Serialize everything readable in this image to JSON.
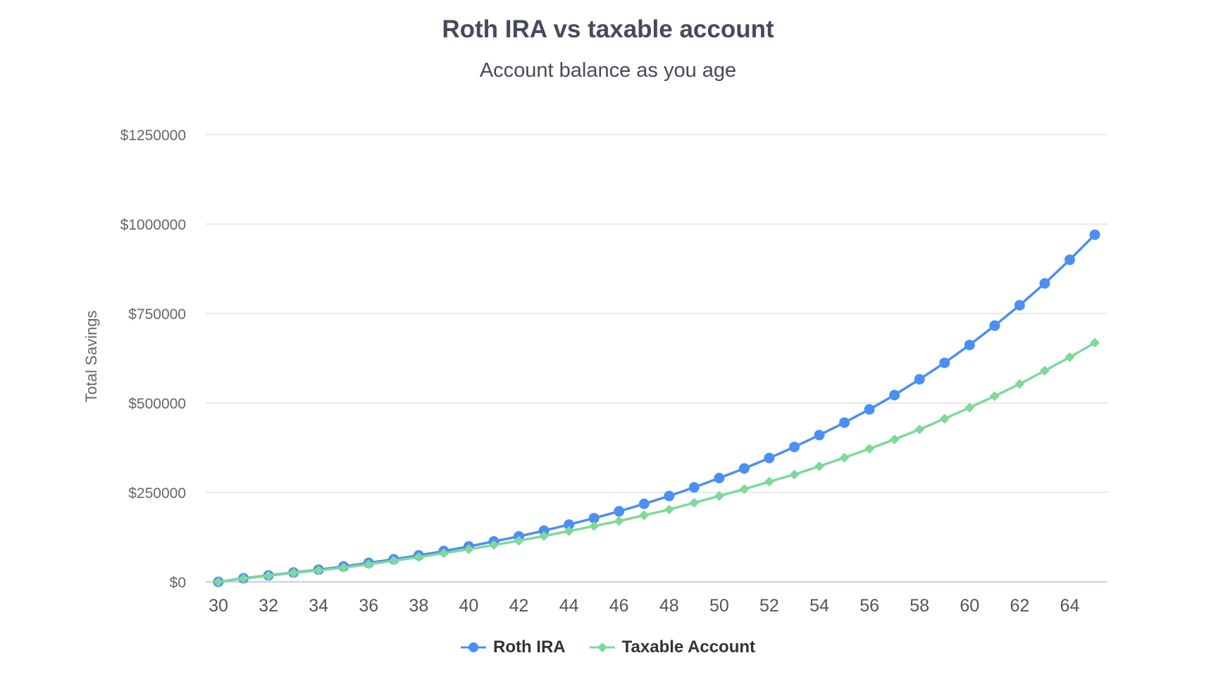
{
  "chart_data": {
    "type": "line",
    "title": "Roth IRA vs taxable account",
    "subtitle": "Account balance as you age",
    "xlabel": "",
    "ylabel": "Total Savings",
    "ylim": [
      0,
      1250000
    ],
    "yticks": [
      0,
      250000,
      500000,
      750000,
      1000000,
      1250000
    ],
    "ytick_labels": [
      "$0",
      "$250000",
      "$500000",
      "$750000",
      "$1000000",
      "$1250000"
    ],
    "xlim": [
      30,
      65
    ],
    "xticks": [
      30,
      32,
      34,
      36,
      38,
      40,
      42,
      44,
      46,
      48,
      50,
      52,
      54,
      56,
      58,
      60,
      62,
      64
    ],
    "xtick_labels": [
      "30",
      "32",
      "34",
      "36",
      "38",
      "40",
      "42",
      "44",
      "46",
      "48",
      "50",
      "52",
      "54",
      "56",
      "58",
      "60",
      "62",
      "64"
    ],
    "grid": true,
    "legend": "bottom-center",
    "x": [
      30,
      31,
      32,
      33,
      34,
      35,
      36,
      37,
      38,
      39,
      40,
      41,
      42,
      43,
      44,
      45,
      46,
      47,
      48,
      49,
      50,
      51,
      52,
      53,
      54,
      55,
      56,
      57,
      58,
      59,
      60,
      61,
      62,
      63,
      64,
      65
    ],
    "series": [
      {
        "name": "Roth IRA",
        "color": "#4a90f2",
        "marker": "circle",
        "values": [
          0,
          10000,
          18000,
          26000,
          34000,
          43000,
          53000,
          63000,
          74000,
          86000,
          99000,
          113000,
          127000,
          143000,
          160000,
          178000,
          197000,
          218000,
          240000,
          264000,
          290000,
          317000,
          346000,
          377000,
          410000,
          445000,
          482000,
          522000,
          566000,
          612000,
          662000,
          716000,
          773000,
          834000,
          900000,
          970000
        ]
      },
      {
        "name": "Taxable Account",
        "color": "#7fd99a",
        "marker": "diamond",
        "values": [
          0,
          9000,
          17000,
          25000,
          32000,
          40000,
          49000,
          59000,
          69000,
          80000,
          91000,
          103000,
          115000,
          128000,
          142000,
          156000,
          170000,
          186000,
          202000,
          221000,
          240000,
          259000,
          280000,
          300000,
          323000,
          347000,
          372000,
          398000,
          426000,
          456000,
          487000,
          519000,
          553000,
          590000,
          628000,
          668000
        ]
      }
    ]
  }
}
